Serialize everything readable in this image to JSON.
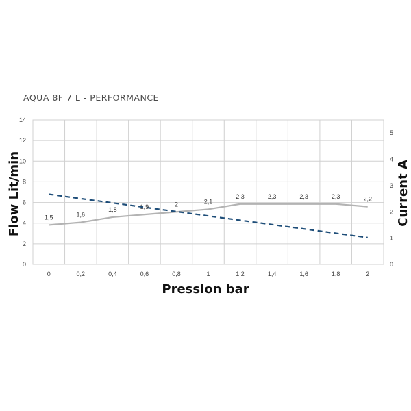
{
  "chart_data": {
    "type": "line",
    "title": "AQUA 8F  7 L - PERFORMANCE",
    "xlabel": "Pression bar",
    "ylabel": "Flow  Lit/min",
    "y2label": "Current A",
    "categories": [
      "0",
      "0,2",
      "0,4",
      "0,6",
      "0,8",
      "1",
      "1,2",
      "1,4",
      "1,6",
      "1,8",
      "2"
    ],
    "ylim": [
      0,
      14
    ],
    "y2lim": [
      0,
      5.5
    ],
    "yticks": [
      "0",
      "2",
      "4",
      "6",
      "8",
      "10",
      "12",
      "14"
    ],
    "y2ticks": [
      "0",
      "1",
      "2",
      "3",
      "4",
      "5"
    ],
    "grid": true,
    "series": [
      {
        "axis": "right",
        "style": "solid",
        "color": "#b3b3b3",
        "values": [
          1.5,
          1.6,
          1.8,
          1.9,
          2,
          2.1,
          2.3,
          2.3,
          2.3,
          2.3,
          2.2
        ],
        "labels": [
          "1,5",
          "1,6",
          "1,8",
          "1,9",
          "2",
          "2,1",
          "2,3",
          "2,3",
          "2,3",
          "2,3",
          "2,2"
        ]
      },
      {
        "axis": "left",
        "style": "dashed",
        "color": "#1f4e79",
        "x": [
          0,
          2
        ],
        "values": [
          6.8,
          2.6
        ]
      }
    ]
  }
}
